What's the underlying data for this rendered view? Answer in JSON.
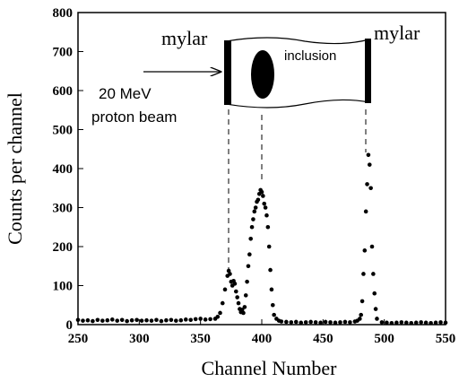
{
  "chart_data": {
    "type": "scatter",
    "xlabel": "Channel Number",
    "ylabel": "Counts per channel",
    "annotations": [
      "mylar",
      "mylar",
      "inclusion",
      "20 MeV",
      "proton beam"
    ],
    "color": "#000000",
    "xlim": [
      250,
      550
    ],
    "xticks": [
      250,
      300,
      350,
      400,
      450,
      500,
      550
    ],
    "ylim": [
      0,
      800
    ],
    "yticks": [
      0,
      100,
      200,
      300,
      400,
      500,
      600,
      700,
      800
    ],
    "x": [
      250,
      254,
      258,
      262,
      266,
      270,
      274,
      278,
      282,
      286,
      290,
      294,
      298,
      302,
      306,
      310,
      314,
      318,
      322,
      326,
      330,
      334,
      338,
      342,
      346,
      350,
      354,
      358,
      362,
      364,
      366,
      368,
      370,
      372,
      373,
      374,
      375,
      376,
      377,
      378,
      379,
      380,
      381,
      382,
      383,
      384,
      385,
      386,
      387,
      388,
      389,
      390,
      391,
      392,
      393,
      394,
      395,
      396,
      397,
      398,
      399,
      400,
      401,
      402,
      403,
      404,
      405,
      406,
      407,
      408,
      409,
      410,
      412,
      414,
      416,
      420,
      424,
      428,
      432,
      436,
      440,
      444,
      448,
      452,
      456,
      460,
      464,
      468,
      472,
      476,
      478,
      480,
      481,
      482,
      483,
      484,
      485,
      486,
      487,
      488,
      489,
      490,
      491,
      492,
      493,
      494,
      498,
      502,
      506,
      510,
      514,
      518,
      522,
      526,
      530,
      534,
      538,
      542,
      546,
      550
    ],
    "values": [
      12,
      10,
      11,
      9,
      12,
      10,
      11,
      13,
      10,
      12,
      9,
      11,
      12,
      10,
      11,
      10,
      12,
      9,
      11,
      12,
      10,
      11,
      13,
      12,
      14,
      15,
      13,
      14,
      15,
      20,
      30,
      55,
      90,
      125,
      138,
      130,
      110,
      100,
      112,
      105,
      85,
      70,
      55,
      40,
      32,
      38,
      30,
      45,
      75,
      110,
      150,
      180,
      220,
      250,
      270,
      290,
      300,
      315,
      320,
      335,
      345,
      340,
      330,
      310,
      300,
      280,
      250,
      200,
      140,
      90,
      50,
      25,
      15,
      10,
      8,
      7,
      6,
      7,
      5,
      6,
      7,
      6,
      5,
      7,
      6,
      5,
      6,
      7,
      6,
      8,
      10,
      15,
      25,
      60,
      130,
      190,
      290,
      360,
      435,
      410,
      350,
      200,
      130,
      80,
      40,
      15,
      6,
      5,
      4,
      5,
      6,
      5,
      4,
      5,
      6,
      5,
      4,
      5,
      6,
      5
    ]
  }
}
